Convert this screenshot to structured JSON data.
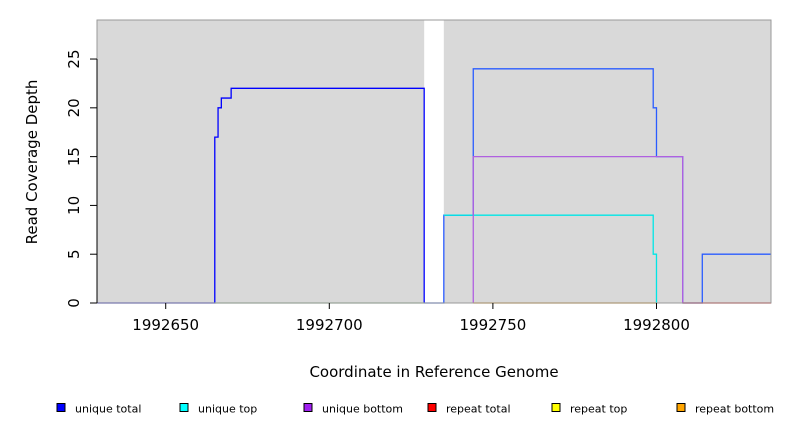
{
  "chart_data": {
    "type": "line",
    "title": "",
    "xlabel": "Coordinate in Reference Genome",
    "ylabel": "Read Coverage Depth",
    "xlim": [
      1992629,
      1992835
    ],
    "ylim": [
      0,
      29
    ],
    "x_ticks": [
      {
        "value": 1992650,
        "label": "1992650"
      },
      {
        "value": 1992700,
        "label": "1992700"
      },
      {
        "value": 1992750,
        "label": "1992750"
      },
      {
        "value": 1992800,
        "label": "1992800"
      }
    ],
    "y_ticks": [
      {
        "value": 0,
        "label": "0"
      },
      {
        "value": 5,
        "label": "5"
      },
      {
        "value": 10,
        "label": "10"
      },
      {
        "value": 15,
        "label": "15"
      },
      {
        "value": 20,
        "label": "20"
      },
      {
        "value": 25,
        "label": "25"
      }
    ],
    "background_regions": [
      {
        "x0": 1992629,
        "x1": 1992729,
        "color": "#d9d9d9"
      },
      {
        "x0": 1992735,
        "x1": 1992835,
        "color": "#d9d9d9"
      }
    ],
    "legend_position": "bottom",
    "series": [
      {
        "name": "unique total",
        "color": "#0000ff",
        "step": true,
        "points": [
          [
            1992629,
            0
          ],
          [
            1992664,
            0
          ],
          [
            1992665,
            17
          ],
          [
            1992666,
            20
          ],
          [
            1992667,
            21
          ],
          [
            1992670,
            22
          ],
          [
            1992729,
            22
          ],
          [
            1992729,
            0
          ]
        ]
      },
      {
        "name": "unique total",
        "color": "#2a5cff",
        "step": true,
        "points": [
          [
            1992729,
            0
          ],
          [
            1992735,
            0
          ],
          [
            1992735,
            9
          ],
          [
            1992744,
            9
          ],
          [
            1992744,
            24
          ],
          [
            1992798,
            24
          ],
          [
            1992799,
            23
          ],
          [
            1992799,
            20
          ],
          [
            1992800,
            15
          ],
          [
            1992808,
            15
          ],
          [
            1992808,
            0
          ],
          [
            1992814,
            0
          ],
          [
            1992814,
            5
          ],
          [
            1992835,
            5
          ]
        ]
      },
      {
        "name": "unique top",
        "color": "#00e5e5",
        "step": true,
        "points": [
          [
            1992735,
            9
          ],
          [
            1992798,
            9
          ],
          [
            1992799,
            8
          ],
          [
            1992799,
            5
          ],
          [
            1992800,
            5
          ],
          [
            1992800,
            0
          ]
        ]
      },
      {
        "name": "unique top",
        "color": "#9dd39d",
        "step": true,
        "points": [
          [
            1992665,
            0
          ],
          [
            1992729,
            0
          ]
        ]
      },
      {
        "name": "unique bottom",
        "color": "#b060e0",
        "step": true,
        "points": [
          [
            1992744,
            0
          ],
          [
            1992744,
            15
          ],
          [
            1992808,
            15
          ],
          [
            1992808,
            0
          ]
        ]
      },
      {
        "name": "repeat total",
        "color": "#ff0000",
        "step": true,
        "points": [
          [
            1992808,
            0
          ],
          [
            1992835,
            0
          ]
        ]
      },
      {
        "name": "repeat bottom",
        "color": "#ffa500",
        "step": true,
        "points": [
          [
            1992744,
            0
          ],
          [
            1992800,
            0
          ]
        ]
      }
    ],
    "legend": [
      {
        "name": "unique total",
        "color": "#0000ff"
      },
      {
        "name": "unique top",
        "color": "#00ffff"
      },
      {
        "name": "unique bottom",
        "color": "#a020f0"
      },
      {
        "name": "repeat total",
        "color": "#ff0000"
      },
      {
        "name": "repeat top",
        "color": "#ffff00"
      },
      {
        "name": "repeat bottom",
        "color": "#ffa500"
      }
    ]
  }
}
